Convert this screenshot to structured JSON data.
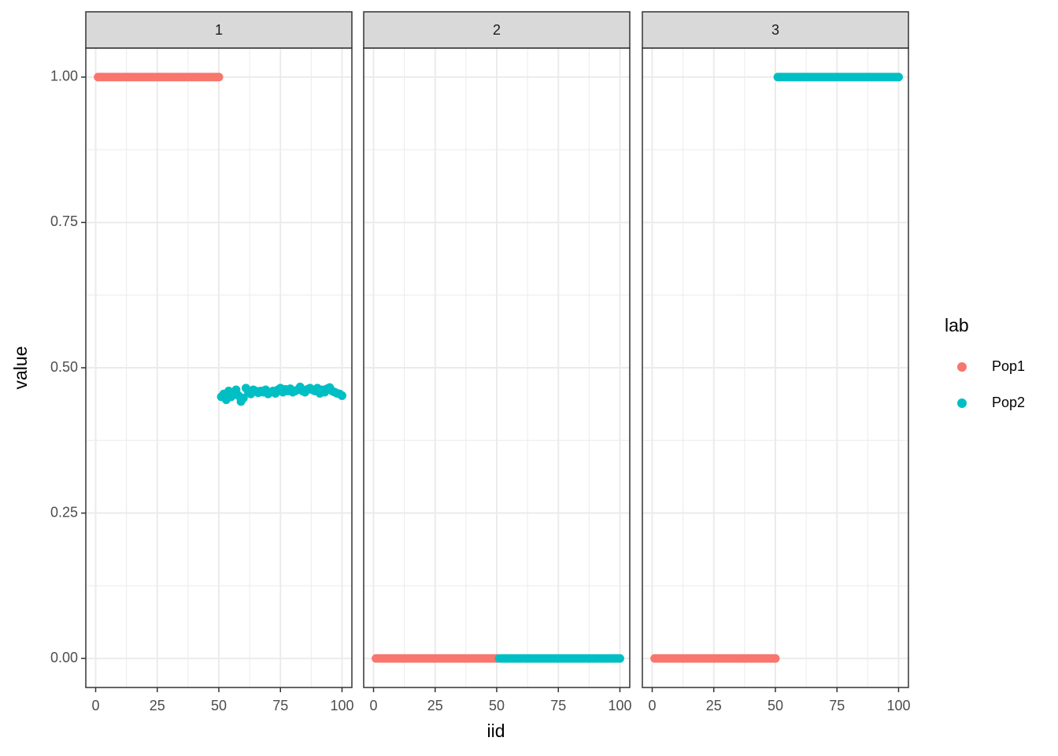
{
  "chart_data": [
    {
      "type": "scatter",
      "title": "1",
      "xlim": [
        -4,
        104
      ],
      "ylim": [
        -0.05,
        1.05
      ],
      "xticks": [
        0,
        25,
        50,
        75,
        100
      ],
      "yticks": [
        {
          "value": 0,
          "label": "0.00"
        },
        {
          "value": 0.25,
          "label": "0.25"
        },
        {
          "value": 0.5,
          "label": "0.50"
        },
        {
          "value": 0.75,
          "label": "0.75"
        },
        {
          "value": 1,
          "label": "1.00"
        }
      ],
      "series": [
        {
          "name": "Pop1",
          "color": "#F8766D",
          "x": [
            1,
            2,
            3,
            4,
            5,
            6,
            7,
            8,
            9,
            10,
            11,
            12,
            13,
            14,
            15,
            16,
            17,
            18,
            19,
            20,
            21,
            22,
            23,
            24,
            25,
            26,
            27,
            28,
            29,
            30,
            31,
            32,
            33,
            34,
            35,
            36,
            37,
            38,
            39,
            40,
            41,
            42,
            43,
            44,
            45,
            46,
            47,
            48,
            49,
            50
          ],
          "values": [
            1,
            1,
            1,
            1,
            1,
            1,
            1,
            1,
            1,
            1,
            1,
            1,
            1,
            1,
            1,
            1,
            1,
            1,
            1,
            1,
            1,
            1,
            1,
            1,
            1,
            1,
            1,
            1,
            1,
            1,
            1,
            1,
            1,
            1,
            1,
            1,
            1,
            1,
            1,
            1,
            1,
            1,
            1,
            1,
            1,
            1,
            1,
            1,
            1,
            1
          ]
        },
        {
          "name": "Pop2",
          "color": "#00BFC4",
          "x": [
            51,
            52,
            53,
            54,
            55,
            56,
            57,
            58,
            59,
            60,
            61,
            62,
            63,
            64,
            65,
            66,
            67,
            68,
            69,
            70,
            71,
            72,
            73,
            74,
            75,
            76,
            77,
            78,
            79,
            80,
            81,
            82,
            83,
            84,
            85,
            86,
            87,
            88,
            89,
            90,
            91,
            92,
            93,
            94,
            95,
            96,
            97,
            98,
            99,
            100
          ],
          "values": [
            0.45,
            0.455,
            0.445,
            0.46,
            0.45,
            0.457,
            0.462,
            0.452,
            0.442,
            0.448,
            0.465,
            0.458,
            0.455,
            0.462,
            0.46,
            0.457,
            0.46,
            0.458,
            0.462,
            0.455,
            0.458,
            0.46,
            0.456,
            0.462,
            0.465,
            0.458,
            0.463,
            0.46,
            0.464,
            0.458,
            0.46,
            0.462,
            0.467,
            0.46,
            0.458,
            0.463,
            0.465,
            0.462,
            0.46,
            0.465,
            0.456,
            0.462,
            0.458,
            0.464,
            0.466,
            0.46,
            0.458,
            0.456,
            0.455,
            0.452
          ]
        }
      ]
    },
    {
      "type": "scatter",
      "title": "2",
      "xlim": [
        -4,
        104
      ],
      "ylim": [
        -0.05,
        1.05
      ],
      "xticks": [
        0,
        25,
        50,
        75,
        100
      ],
      "yticks": [
        {
          "value": 0,
          "label": "0.00"
        },
        {
          "value": 0.25,
          "label": "0.25"
        },
        {
          "value": 0.5,
          "label": "0.50"
        },
        {
          "value": 0.75,
          "label": "0.75"
        },
        {
          "value": 1,
          "label": "1.00"
        }
      ],
      "series": [
        {
          "name": "Pop1",
          "color": "#F8766D",
          "x": [
            1,
            2,
            3,
            4,
            5,
            6,
            7,
            8,
            9,
            10,
            11,
            12,
            13,
            14,
            15,
            16,
            17,
            18,
            19,
            20,
            21,
            22,
            23,
            24,
            25,
            26,
            27,
            28,
            29,
            30,
            31,
            32,
            33,
            34,
            35,
            36,
            37,
            38,
            39,
            40,
            41,
            42,
            43,
            44,
            45,
            46,
            47,
            48,
            49,
            50
          ],
          "values": [
            0,
            0,
            0,
            0,
            0,
            0,
            0,
            0,
            0,
            0,
            0,
            0,
            0,
            0,
            0,
            0,
            0,
            0,
            0,
            0,
            0,
            0,
            0,
            0,
            0,
            0,
            0,
            0,
            0,
            0,
            0,
            0,
            0,
            0,
            0,
            0,
            0,
            0,
            0,
            0,
            0,
            0,
            0,
            0,
            0,
            0,
            0,
            0,
            0,
            0
          ]
        },
        {
          "name": "Pop2",
          "color": "#00BFC4",
          "x": [
            51,
            52,
            53,
            54,
            55,
            56,
            57,
            58,
            59,
            60,
            61,
            62,
            63,
            64,
            65,
            66,
            67,
            68,
            69,
            70,
            71,
            72,
            73,
            74,
            75,
            76,
            77,
            78,
            79,
            80,
            81,
            82,
            83,
            84,
            85,
            86,
            87,
            88,
            89,
            90,
            91,
            92,
            93,
            94,
            95,
            96,
            97,
            98,
            99,
            100
          ],
          "values": [
            0,
            0,
            0,
            0,
            0,
            0,
            0,
            0,
            0,
            0,
            0,
            0,
            0,
            0,
            0,
            0,
            0,
            0,
            0,
            0,
            0,
            0,
            0,
            0,
            0,
            0,
            0,
            0,
            0,
            0,
            0,
            0,
            0,
            0,
            0,
            0,
            0,
            0,
            0,
            0,
            0,
            0,
            0,
            0,
            0,
            0,
            0,
            0,
            0,
            0
          ]
        }
      ]
    },
    {
      "type": "scatter",
      "title": "3",
      "xlim": [
        -4,
        104
      ],
      "ylim": [
        -0.05,
        1.05
      ],
      "xticks": [
        0,
        25,
        50,
        75,
        100
      ],
      "yticks": [
        {
          "value": 0,
          "label": "0.00"
        },
        {
          "value": 0.25,
          "label": "0.25"
        },
        {
          "value": 0.5,
          "label": "0.50"
        },
        {
          "value": 0.75,
          "label": "0.75"
        },
        {
          "value": 1,
          "label": "1.00"
        }
      ],
      "series": [
        {
          "name": "Pop1",
          "color": "#F8766D",
          "x": [
            1,
            2,
            3,
            4,
            5,
            6,
            7,
            8,
            9,
            10,
            11,
            12,
            13,
            14,
            15,
            16,
            17,
            18,
            19,
            20,
            21,
            22,
            23,
            24,
            25,
            26,
            27,
            28,
            29,
            30,
            31,
            32,
            33,
            34,
            35,
            36,
            37,
            38,
            39,
            40,
            41,
            42,
            43,
            44,
            45,
            46,
            47,
            48,
            49,
            50
          ],
          "values": [
            0,
            0,
            0,
            0,
            0,
            0,
            0,
            0,
            0,
            0,
            0,
            0,
            0,
            0,
            0,
            0,
            0,
            0,
            0,
            0,
            0,
            0,
            0,
            0,
            0,
            0,
            0,
            0,
            0,
            0,
            0,
            0,
            0,
            0,
            0,
            0,
            0,
            0,
            0,
            0,
            0,
            0,
            0,
            0,
            0,
            0,
            0,
            0,
            0,
            0
          ]
        },
        {
          "name": "Pop2",
          "color": "#00BFC4",
          "x": [
            51,
            52,
            53,
            54,
            55,
            56,
            57,
            58,
            59,
            60,
            61,
            62,
            63,
            64,
            65,
            66,
            67,
            68,
            69,
            70,
            71,
            72,
            73,
            74,
            75,
            76,
            77,
            78,
            79,
            80,
            81,
            82,
            83,
            84,
            85,
            86,
            87,
            88,
            89,
            90,
            91,
            92,
            93,
            94,
            95,
            96,
            97,
            98,
            99,
            100
          ],
          "values": [
            1,
            1,
            1,
            1,
            1,
            1,
            1,
            1,
            1,
            1,
            1,
            1,
            1,
            1,
            1,
            1,
            1,
            1,
            1,
            1,
            1,
            1,
            1,
            1,
            1,
            1,
            1,
            1,
            1,
            1,
            1,
            1,
            1,
            1,
            1,
            1,
            1,
            1,
            1,
            1,
            1,
            1,
            1,
            1,
            1,
            1,
            1,
            1,
            1,
            1
          ]
        }
      ]
    }
  ],
  "xlabel": "iid",
  "ylabel": "value",
  "legend_title": "lab"
}
